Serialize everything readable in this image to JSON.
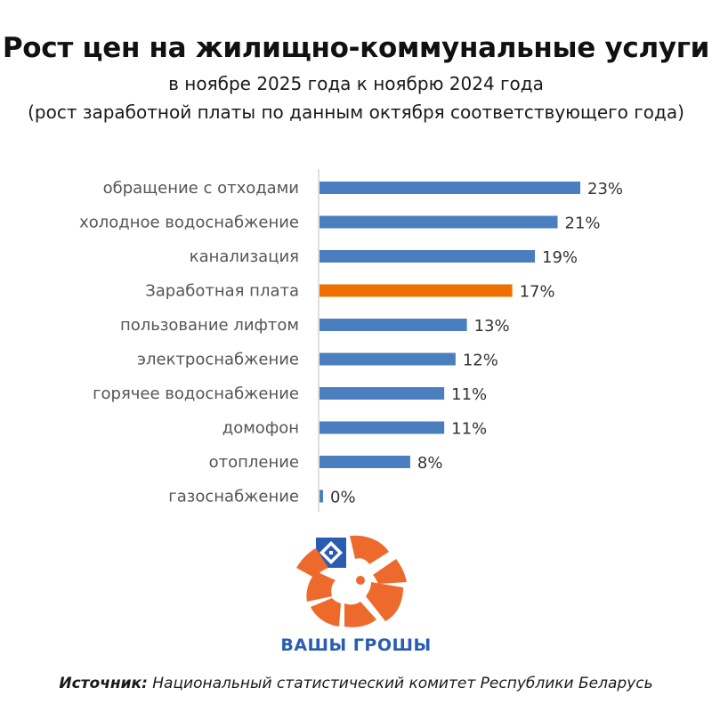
{
  "header": {
    "title": "Рост цен на жилищно-коммунальные услуги",
    "subtitle1": "в ноябре 2025 года к ноябрю 2024 года",
    "subtitle2": "(рост заработной платы по данным октября соответствующего года)"
  },
  "chart_data": {
    "type": "bar",
    "orientation": "horizontal",
    "categories": [
      "обращение с отходами",
      "холодное водоснабжение",
      "канализация",
      "Заработная плата",
      "пользование лифтом",
      "электроснабжение",
      "горячее водоснабжение",
      "домофон",
      "отопление",
      "газоснабжение"
    ],
    "values": [
      23,
      21,
      19,
      17,
      13,
      12,
      11,
      11,
      8,
      0
    ],
    "value_labels": [
      "23%",
      "21%",
      "19%",
      "17%",
      "13%",
      "12%",
      "11%",
      "11%",
      "8%",
      "0%"
    ],
    "highlight_index": 3,
    "xlim": [
      0,
      25
    ],
    "grid": false,
    "legend": "none",
    "colors": {
      "bar": "#4a7ebf",
      "highlight": "#ee7100",
      "axis": "#bfbfbf"
    }
  },
  "logo": {
    "text": "ВАШЫ ГРОШЫ",
    "color": "#ee6a2c",
    "text_color": "#2a5db0"
  },
  "footer": {
    "source_label": "Источник:",
    "source_text": " Национальный статистический комитет Республики Беларусь"
  }
}
